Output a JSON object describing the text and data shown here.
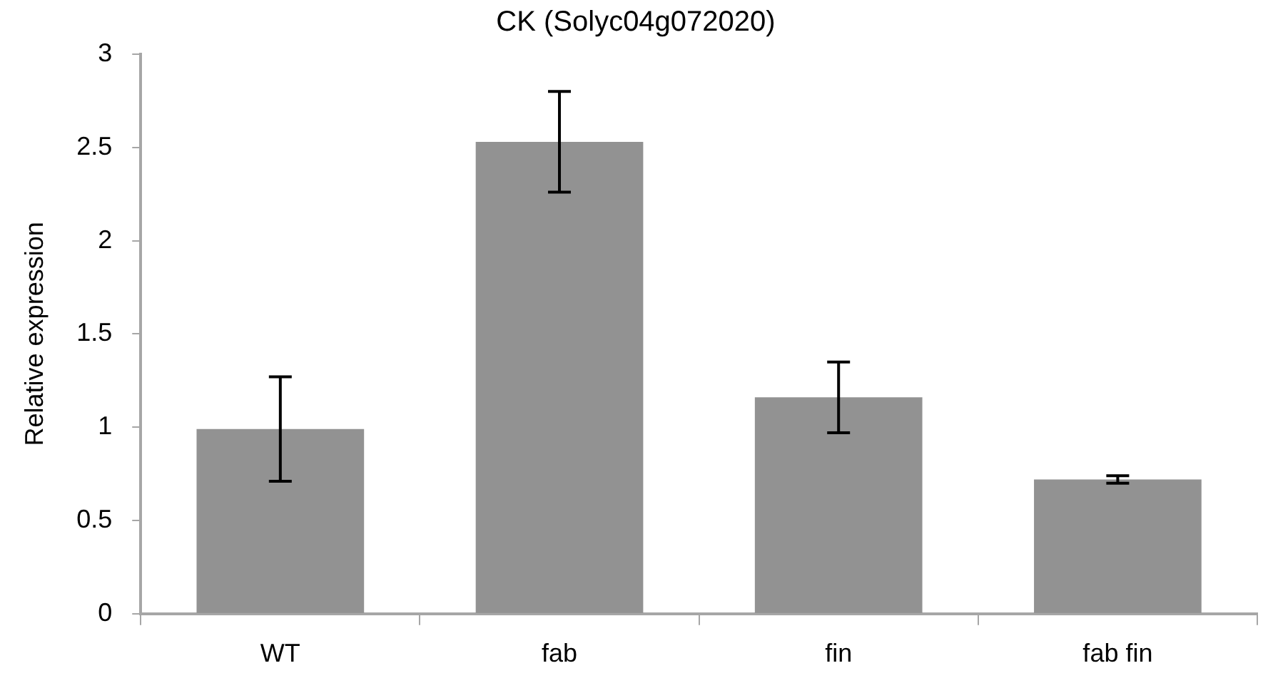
{
  "chart_data": {
    "type": "bar",
    "title": "CK (Solyc04g072020)",
    "ylabel": "Relative expression",
    "categories": [
      "WT",
      "fab",
      "fin",
      "fab fin"
    ],
    "values": [
      0.99,
      2.53,
      1.16,
      0.72
    ],
    "errors": [
      0.28,
      0.27,
      0.19,
      0.02
    ],
    "color": "#929292",
    "ylim": [
      0,
      3
    ],
    "yticks": [
      0,
      0.5,
      1,
      1.5,
      2,
      2.5,
      3
    ],
    "grid": false,
    "legend": false
  }
}
